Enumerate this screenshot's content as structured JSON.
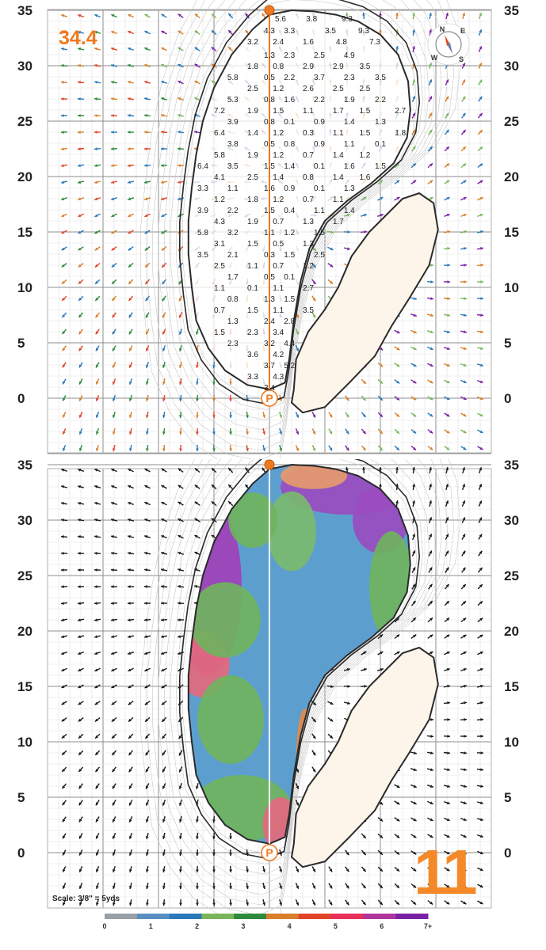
{
  "green_length": "34.4",
  "hole_number": "11",
  "scale_note": "Scale: 3/8\" = 5yds",
  "y_axis_labels": [
    "35",
    "30",
    "25",
    "20",
    "15",
    "10",
    "5",
    "0"
  ],
  "compass_letters": [
    "N",
    "E",
    "S",
    "W"
  ],
  "slope_labels": [
    {
      "t": "5.6",
      "x": 1,
      "y": 34.3
    },
    {
      "t": "3.8",
      "x": 3.8,
      "y": 34.3
    },
    {
      "t": "9.3",
      "x": 7,
      "y": 34.3
    },
    {
      "t": "4.3",
      "x": 0,
      "y": 33.2
    },
    {
      "t": "3.3",
      "x": 1.8,
      "y": 33.2
    },
    {
      "t": "3.5",
      "x": 5.5,
      "y": 33.2
    },
    {
      "t": "9.3",
      "x": 8.5,
      "y": 33.2
    },
    {
      "t": "3.2",
      "x": -1.5,
      "y": 32.2
    },
    {
      "t": "2.4",
      "x": 0.8,
      "y": 32.2
    },
    {
      "t": "1.6",
      "x": 3.5,
      "y": 32.2
    },
    {
      "t": "4.8",
      "x": 6.5,
      "y": 32.2
    },
    {
      "t": "7.3",
      "x": 9.5,
      "y": 32.2
    },
    {
      "t": "1.3",
      "x": 0,
      "y": 31
    },
    {
      "t": "2.3",
      "x": 1.8,
      "y": 31
    },
    {
      "t": "2.5",
      "x": 4.5,
      "y": 31
    },
    {
      "t": "4.9",
      "x": 7.2,
      "y": 31
    },
    {
      "t": "1.8",
      "x": -1.5,
      "y": 30
    },
    {
      "t": "0.8",
      "x": 0.8,
      "y": 30
    },
    {
      "t": "2.9",
      "x": 3.5,
      "y": 30
    },
    {
      "t": "2.9",
      "x": 6.2,
      "y": 30
    },
    {
      "t": "3.5",
      "x": 8.6,
      "y": 30
    },
    {
      "t": "5.8",
      "x": -3.3,
      "y": 29
    },
    {
      "t": "0.5",
      "x": 0,
      "y": 29
    },
    {
      "t": "2.2",
      "x": 1.8,
      "y": 29
    },
    {
      "t": "3.7",
      "x": 4.5,
      "y": 29
    },
    {
      "t": "2.3",
      "x": 7.2,
      "y": 29
    },
    {
      "t": "3.5",
      "x": 10,
      "y": 29
    },
    {
      "t": "2.5",
      "x": -1.5,
      "y": 28
    },
    {
      "t": "1.2",
      "x": 0.8,
      "y": 28
    },
    {
      "t": "2.6",
      "x": 3.5,
      "y": 28
    },
    {
      "t": "2.5",
      "x": 6.2,
      "y": 28
    },
    {
      "t": "2.5",
      "x": 8.6,
      "y": 28
    },
    {
      "t": "5.3",
      "x": -3.3,
      "y": 27
    },
    {
      "t": "0.8",
      "x": 0,
      "y": 27
    },
    {
      "t": "1.6",
      "x": 1.8,
      "y": 27
    },
    {
      "t": "2.2",
      "x": 4.5,
      "y": 27
    },
    {
      "t": "1.9",
      "x": 7.2,
      "y": 27
    },
    {
      "t": "2.2",
      "x": 10,
      "y": 27
    },
    {
      "t": "7.2",
      "x": -4.5,
      "y": 26
    },
    {
      "t": "1.9",
      "x": -1.5,
      "y": 26
    },
    {
      "t": "1.5",
      "x": 0.8,
      "y": 26
    },
    {
      "t": "1.1",
      "x": 3.5,
      "y": 26
    },
    {
      "t": "1.7",
      "x": 6.2,
      "y": 26
    },
    {
      "t": "1.5",
      "x": 8.6,
      "y": 26
    },
    {
      "t": "2.7",
      "x": 11.8,
      "y": 26
    },
    {
      "t": "3.9",
      "x": -3.3,
      "y": 25
    },
    {
      "t": "0.8",
      "x": 0,
      "y": 25
    },
    {
      "t": "0.1",
      "x": 1.8,
      "y": 25
    },
    {
      "t": "0.9",
      "x": 4.5,
      "y": 25
    },
    {
      "t": "1.4",
      "x": 7.2,
      "y": 25
    },
    {
      "t": "1.3",
      "x": 10,
      "y": 25
    },
    {
      "t": "6.4",
      "x": -4.5,
      "y": 24
    },
    {
      "t": "1.4",
      "x": -1.5,
      "y": 24
    },
    {
      "t": "1.2",
      "x": 0.8,
      "y": 24
    },
    {
      "t": "0.3",
      "x": 3.5,
      "y": 24
    },
    {
      "t": "1.1",
      "x": 6.2,
      "y": 24
    },
    {
      "t": "1.5",
      "x": 8.6,
      "y": 24
    },
    {
      "t": "1.8",
      "x": 11.8,
      "y": 24
    },
    {
      "t": "3.8",
      "x": -3.3,
      "y": 23
    },
    {
      "t": "0.5",
      "x": 0,
      "y": 23
    },
    {
      "t": "0.8",
      "x": 1.8,
      "y": 23
    },
    {
      "t": "0.9",
      "x": 4.5,
      "y": 23
    },
    {
      "t": "1.1",
      "x": 7.2,
      "y": 23
    },
    {
      "t": "0.1",
      "x": 10,
      "y": 23
    },
    {
      "t": "5.8",
      "x": -4.5,
      "y": 22
    },
    {
      "t": "1.9",
      "x": -1.5,
      "y": 22
    },
    {
      "t": "1.2",
      "x": 0.8,
      "y": 22
    },
    {
      "t": "0.7",
      "x": 3.5,
      "y": 22
    },
    {
      "t": "1.4",
      "x": 6.2,
      "y": 22
    },
    {
      "t": "1.2",
      "x": 8.6,
      "y": 22
    },
    {
      "t": "6.4",
      "x": -6,
      "y": 21
    },
    {
      "t": "3.5",
      "x": -3.3,
      "y": 21
    },
    {
      "t": "1.5",
      "x": 0,
      "y": 21
    },
    {
      "t": "1.4",
      "x": 1.8,
      "y": 21
    },
    {
      "t": "0.1",
      "x": 4.5,
      "y": 21
    },
    {
      "t": "1.6",
      "x": 7.2,
      "y": 21
    },
    {
      "t": "1.5",
      "x": 10,
      "y": 21
    },
    {
      "t": "4.1",
      "x": -4.5,
      "y": 20
    },
    {
      "t": "2.5",
      "x": -1.5,
      "y": 20
    },
    {
      "t": "1.4",
      "x": 0.8,
      "y": 20
    },
    {
      "t": "0.8",
      "x": 3.5,
      "y": 20
    },
    {
      "t": "1.4",
      "x": 6.2,
      "y": 20
    },
    {
      "t": "1.6",
      "x": 8.6,
      "y": 20
    },
    {
      "t": "3.3",
      "x": -6,
      "y": 19
    },
    {
      "t": "1.1",
      "x": -3.3,
      "y": 19
    },
    {
      "t": "1.6",
      "x": 0,
      "y": 19
    },
    {
      "t": "0.9",
      "x": 1.8,
      "y": 19
    },
    {
      "t": "0.1",
      "x": 4.5,
      "y": 19
    },
    {
      "t": "1.3",
      "x": 7.2,
      "y": 19
    },
    {
      "t": "1.2",
      "x": -4.5,
      "y": 18
    },
    {
      "t": "1.8",
      "x": -1.5,
      "y": 18
    },
    {
      "t": "1.2",
      "x": 0.8,
      "y": 18
    },
    {
      "t": "0.7",
      "x": 3.5,
      "y": 18
    },
    {
      "t": "1.1",
      "x": 6.2,
      "y": 18
    },
    {
      "t": "3.9",
      "x": -6,
      "y": 17
    },
    {
      "t": "2.2",
      "x": -3.3,
      "y": 17
    },
    {
      "t": "1.5",
      "x": 0,
      "y": 17
    },
    {
      "t": "0.4",
      "x": 1.8,
      "y": 17
    },
    {
      "t": "1.1",
      "x": 4.5,
      "y": 17
    },
    {
      "t": "1.4",
      "x": 7.2,
      "y": 17
    },
    {
      "t": "4.3",
      "x": -4.5,
      "y": 16
    },
    {
      "t": "1.9",
      "x": -1.5,
      "y": 16
    },
    {
      "t": "0.7",
      "x": 0.8,
      "y": 16
    },
    {
      "t": "1.3",
      "x": 3.5,
      "y": 16
    },
    {
      "t": "1.7",
      "x": 6.2,
      "y": 16
    },
    {
      "t": "5.8",
      "x": -6,
      "y": 15
    },
    {
      "t": "3.2",
      "x": -3.3,
      "y": 15
    },
    {
      "t": "1.1",
      "x": 0,
      "y": 15
    },
    {
      "t": "1.2",
      "x": 1.8,
      "y": 15
    },
    {
      "t": "1.5",
      "x": 4.5,
      "y": 15
    },
    {
      "t": "3.1",
      "x": -4.5,
      "y": 14
    },
    {
      "t": "1.5",
      "x": -1.5,
      "y": 14
    },
    {
      "t": "0.5",
      "x": 0.8,
      "y": 14
    },
    {
      "t": "1.3",
      "x": 3.5,
      "y": 14
    },
    {
      "t": "3.5",
      "x": -6,
      "y": 13
    },
    {
      "t": "2.1",
      "x": -3.3,
      "y": 13
    },
    {
      "t": "0.3",
      "x": 0,
      "y": 13
    },
    {
      "t": "1.5",
      "x": 1.8,
      "y": 13
    },
    {
      "t": "2.5",
      "x": 4.5,
      "y": 13
    },
    {
      "t": "2.5",
      "x": -4.5,
      "y": 12
    },
    {
      "t": "1.1",
      "x": -1.5,
      "y": 12
    },
    {
      "t": "0.7",
      "x": 0.8,
      "y": 12
    },
    {
      "t": "1.2",
      "x": 3.5,
      "y": 12
    },
    {
      "t": "1.7",
      "x": -3.3,
      "y": 11
    },
    {
      "t": "0.5",
      "x": 0,
      "y": 11
    },
    {
      "t": "0.1",
      "x": 1.8,
      "y": 11
    },
    {
      "t": "1.1",
      "x": -4.5,
      "y": 10
    },
    {
      "t": "0.1",
      "x": -1.5,
      "y": 10
    },
    {
      "t": "1.1",
      "x": 0.8,
      "y": 10
    },
    {
      "t": "2.7",
      "x": 3.5,
      "y": 10
    },
    {
      "t": "0.8",
      "x": -3.3,
      "y": 9
    },
    {
      "t": "1.3",
      "x": 0,
      "y": 9
    },
    {
      "t": "1.5",
      "x": 1.8,
      "y": 9
    },
    {
      "t": "0.7",
      "x": -4.5,
      "y": 8
    },
    {
      "t": "1.5",
      "x": -1.5,
      "y": 8
    },
    {
      "t": "1.1",
      "x": 0.8,
      "y": 8
    },
    {
      "t": "3.5",
      "x": 3.5,
      "y": 8
    },
    {
      "t": "1.3",
      "x": -3.3,
      "y": 7
    },
    {
      "t": "2.4",
      "x": 0,
      "y": 7
    },
    {
      "t": "2.8",
      "x": 1.8,
      "y": 7
    },
    {
      "t": "1.5",
      "x": -4.5,
      "y": 6
    },
    {
      "t": "2.3",
      "x": -1.5,
      "y": 6
    },
    {
      "t": "3.4",
      "x": 0.8,
      "y": 6
    },
    {
      "t": "2.3",
      "x": -3.3,
      "y": 5
    },
    {
      "t": "3.2",
      "x": 0,
      "y": 5
    },
    {
      "t": "4.4",
      "x": 1.8,
      "y": 5
    },
    {
      "t": "3.6",
      "x": -1.5,
      "y": 4
    },
    {
      "t": "4.2",
      "x": 0.8,
      "y": 4
    },
    {
      "t": "3.7",
      "x": 0,
      "y": 3
    },
    {
      "t": "5.2",
      "x": 1.8,
      "y": 3
    },
    {
      "t": "3.3",
      "x": -1.5,
      "y": 2
    },
    {
      "t": "4.3",
      "x": 0.8,
      "y": 2
    },
    {
      "t": "3.4",
      "x": 0,
      "y": 1
    }
  ],
  "legend": {
    "ticks": [
      "0",
      "1",
      "2",
      "3",
      "4",
      "5",
      "6",
      "7+"
    ],
    "colors": [
      "#9aa0a8",
      "#5a8fc2",
      "#2b79b8",
      "#7ab55c",
      "#2f8a3c",
      "#d97e2a",
      "#e0452b",
      "#e8305a",
      "#b0369e",
      "#7a22a6"
    ]
  },
  "colors": {
    "accent": "#f07a1f",
    "green_edge": "#2a2a2a",
    "bunker": "#fdf4ea",
    "grid": "#9a9a9a"
  }
}
